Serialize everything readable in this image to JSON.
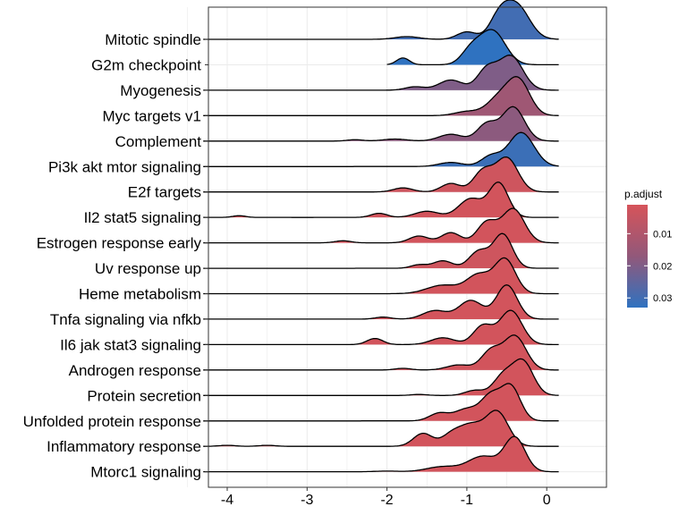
{
  "chart_data": {
    "type": "ridgeline",
    "title": "",
    "xlabel": "",
    "ylabel": "",
    "xlim": [
      -4.5,
      0.4
    ],
    "xticks": [
      -4,
      -3,
      -2,
      -1,
      0
    ],
    "xtick_labels": [
      "-4",
      "-3",
      "-2",
      "-1",
      "0"
    ],
    "grid": true,
    "legend": {
      "title": "p.adjust",
      "position": "right",
      "type": "colorbar",
      "range": [
        0.001,
        0.033
      ],
      "ticks": [
        0.01,
        0.02,
        0.03
      ],
      "tick_labels": [
        "0.01",
        "0.02",
        "0.03"
      ],
      "color_low": "#d6545a",
      "color_mid": "#92587a",
      "color_high": "#2f72c0"
    },
    "series": [
      {
        "name": "Mitotic spindle",
        "p_adjust": 0.03,
        "x_min": -4.3,
        "x_max": 0.15,
        "peaks": [
          [
            -0.38,
            0.16,
            1.0
          ],
          [
            -0.6,
            0.12,
            0.55
          ],
          [
            -1.0,
            0.12,
            0.22
          ],
          [
            -1.75,
            0.15,
            0.08
          ]
        ]
      },
      {
        "name": "G2m checkpoint",
        "p_adjust": 0.033,
        "x_min": -2.0,
        "x_max": 0.15,
        "peaks": [
          [
            -0.68,
            0.16,
            1.0
          ],
          [
            -0.95,
            0.12,
            0.4
          ],
          [
            -1.8,
            0.08,
            0.2
          ]
        ]
      },
      {
        "name": "Myogenesis",
        "p_adjust": 0.02,
        "x_min": -4.3,
        "x_max": 0.15,
        "peaks": [
          [
            -0.45,
            0.15,
            1.0
          ],
          [
            -0.75,
            0.12,
            0.6
          ],
          [
            -1.2,
            0.15,
            0.3
          ],
          [
            -1.65,
            0.12,
            0.1
          ]
        ]
      },
      {
        "name": "Myc targets v1",
        "p_adjust": 0.014,
        "x_min": -4.3,
        "x_max": 0.15,
        "peaks": [
          [
            -0.35,
            0.14,
            1.0
          ],
          [
            -0.6,
            0.15,
            0.5
          ],
          [
            -1.0,
            0.15,
            0.12
          ]
        ]
      },
      {
        "name": "Complement",
        "p_adjust": 0.018,
        "x_min": -4.3,
        "x_max": 0.15,
        "peaks": [
          [
            -0.42,
            0.14,
            1.0
          ],
          [
            -0.75,
            0.12,
            0.5
          ],
          [
            -1.2,
            0.15,
            0.2
          ],
          [
            -1.9,
            0.15,
            0.06
          ],
          [
            -2.4,
            0.1,
            0.04
          ]
        ]
      },
      {
        "name": "Pi3k akt mtor signaling",
        "p_adjust": 0.031,
        "x_min": -4.3,
        "x_max": 0.15,
        "peaks": [
          [
            -0.32,
            0.16,
            1.0
          ],
          [
            -0.7,
            0.12,
            0.3
          ],
          [
            -1.2,
            0.15,
            0.12
          ]
        ]
      },
      {
        "name": "E2f targets",
        "p_adjust": 0.003,
        "x_min": -4.3,
        "x_max": 0.15,
        "peaks": [
          [
            -0.5,
            0.14,
            1.0
          ],
          [
            -0.8,
            0.12,
            0.6
          ],
          [
            -1.2,
            0.12,
            0.25
          ],
          [
            -1.8,
            0.12,
            0.12
          ]
        ]
      },
      {
        "name": "Il2 stat5 signaling",
        "p_adjust": 0.002,
        "x_min": -4.3,
        "x_max": 0.15,
        "peaks": [
          [
            -0.6,
            0.12,
            1.0
          ],
          [
            -0.95,
            0.15,
            0.55
          ],
          [
            -1.5,
            0.15,
            0.18
          ],
          [
            -2.1,
            0.1,
            0.12
          ],
          [
            -3.85,
            0.08,
            0.05
          ]
        ]
      },
      {
        "name": "Estrogen response early",
        "p_adjust": 0.002,
        "x_min": -4.3,
        "x_max": 0.15,
        "peaks": [
          [
            -0.42,
            0.14,
            1.0
          ],
          [
            -0.75,
            0.12,
            0.6
          ],
          [
            -1.2,
            0.12,
            0.3
          ],
          [
            -1.6,
            0.12,
            0.2
          ],
          [
            -2.55,
            0.1,
            0.06
          ]
        ]
      },
      {
        "name": "Uv response up",
        "p_adjust": 0.003,
        "x_min": -4.3,
        "x_max": 0.15,
        "peaks": [
          [
            -0.55,
            0.12,
            1.0
          ],
          [
            -0.85,
            0.12,
            0.5
          ],
          [
            -1.3,
            0.12,
            0.22
          ],
          [
            -1.6,
            0.1,
            0.1
          ]
        ]
      },
      {
        "name": "Heme metabolism",
        "p_adjust": 0.002,
        "x_min": -4.3,
        "x_max": 0.15,
        "peaks": [
          [
            -0.52,
            0.13,
            1.0
          ],
          [
            -0.85,
            0.15,
            0.55
          ],
          [
            -1.3,
            0.2,
            0.25
          ]
        ]
      },
      {
        "name": "Tnfa signaling via nfkb",
        "p_adjust": 0.002,
        "x_min": -4.3,
        "x_max": 0.15,
        "peaks": [
          [
            -0.5,
            0.13,
            1.0
          ],
          [
            -0.95,
            0.15,
            0.55
          ],
          [
            -1.4,
            0.15,
            0.25
          ],
          [
            -2.05,
            0.1,
            0.06
          ]
        ]
      },
      {
        "name": "Il6 jak stat3 signaling",
        "p_adjust": 0.002,
        "x_min": -4.3,
        "x_max": 0.15,
        "peaks": [
          [
            -0.45,
            0.14,
            1.0
          ],
          [
            -0.8,
            0.12,
            0.55
          ],
          [
            -1.3,
            0.15,
            0.2
          ],
          [
            -2.15,
            0.1,
            0.18
          ]
        ]
      },
      {
        "name": "Androgen response",
        "p_adjust": 0.002,
        "x_min": -4.3,
        "x_max": 0.15,
        "peaks": [
          [
            -0.4,
            0.14,
            1.0
          ],
          [
            -0.7,
            0.12,
            0.55
          ],
          [
            -1.1,
            0.15,
            0.15
          ],
          [
            -1.8,
            0.1,
            0.05
          ]
        ]
      },
      {
        "name": "Protein secretion",
        "p_adjust": 0.002,
        "x_min": -4.3,
        "x_max": 0.15,
        "peaks": [
          [
            -0.3,
            0.13,
            1.0
          ],
          [
            -0.55,
            0.12,
            0.55
          ],
          [
            -0.9,
            0.12,
            0.15
          ],
          [
            -1.6,
            0.1,
            0.03
          ]
        ]
      },
      {
        "name": "Unfolded protein response",
        "p_adjust": 0.002,
        "x_min": -4.3,
        "x_max": 0.15,
        "peaks": [
          [
            -0.45,
            0.12,
            1.0
          ],
          [
            -0.7,
            0.12,
            0.7
          ],
          [
            -1.0,
            0.15,
            0.35
          ],
          [
            -1.35,
            0.12,
            0.22
          ]
        ]
      },
      {
        "name": "Inflammatory response",
        "p_adjust": 0.002,
        "x_min": -4.3,
        "x_max": 0.15,
        "peaks": [
          [
            -0.62,
            0.14,
            1.0
          ],
          [
            -0.95,
            0.15,
            0.6
          ],
          [
            -1.55,
            0.12,
            0.38
          ],
          [
            -1.2,
            0.12,
            0.3
          ],
          [
            -3.5,
            0.1,
            0.03
          ],
          [
            -4.0,
            0.1,
            0.03
          ]
        ]
      },
      {
        "name": "Mtorc1 signaling",
        "p_adjust": 0.002,
        "x_min": -4.3,
        "x_max": 0.15,
        "peaks": [
          [
            -0.4,
            0.13,
            1.0
          ],
          [
            -0.8,
            0.18,
            0.45
          ],
          [
            -1.3,
            0.2,
            0.15
          ],
          [
            -2.0,
            0.15,
            0.02
          ]
        ]
      }
    ]
  }
}
